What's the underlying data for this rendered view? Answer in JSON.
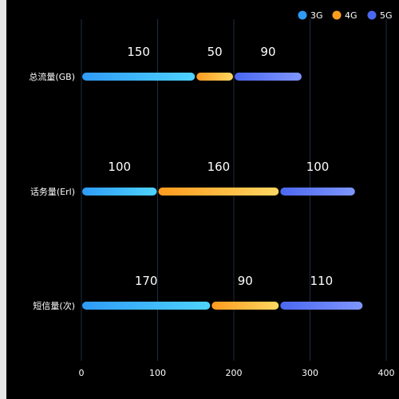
{
  "chart_data": {
    "type": "bar",
    "orientation": "horizontal",
    "stacked": true,
    "categories": [
      "总流量(GB)",
      "话务量(Erl)",
      "短信量(次)"
    ],
    "series": [
      {
        "name": "3G",
        "values": [
          150,
          100,
          170
        ],
        "color_start": "#2f9bf7",
        "color_end": "#4ed3ff"
      },
      {
        "name": "4G",
        "values": [
          50,
          160,
          90
        ],
        "color_start": "#ff9b1f",
        "color_end": "#ffd761"
      },
      {
        "name": "5G",
        "values": [
          90,
          100,
          110
        ],
        "color_start": "#4b68f0",
        "color_end": "#7f96ff"
      }
    ],
    "x_ticks": [
      0,
      100,
      200,
      300,
      400
    ],
    "xlim": [
      0,
      400
    ],
    "grid": "vertical",
    "legend_position": "top-right",
    "background": "#000000",
    "grid_color": "#1e2d44"
  }
}
